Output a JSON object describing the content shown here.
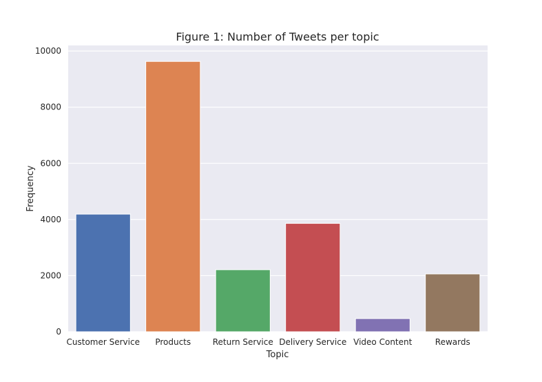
{
  "chart_data": {
    "type": "bar",
    "title": "Figure 1: Number of Tweets per topic",
    "xlabel": "Topic",
    "ylabel": "Frequency",
    "categories": [
      "Customer Service",
      "Products",
      "Return Service",
      "Delivery Service",
      "Video Content",
      "Rewards"
    ],
    "values": [
      4190,
      9630,
      2210,
      3860,
      470,
      2060
    ],
    "colors": [
      "#4c72b0",
      "#dd8452",
      "#55a868",
      "#c44e52",
      "#8172b3",
      "#937860"
    ],
    "ylim": [
      0,
      10200
    ],
    "yticks": [
      0,
      2000,
      4000,
      6000,
      8000,
      10000
    ],
    "grid": true,
    "plot_background": "#eaeaf2"
  }
}
